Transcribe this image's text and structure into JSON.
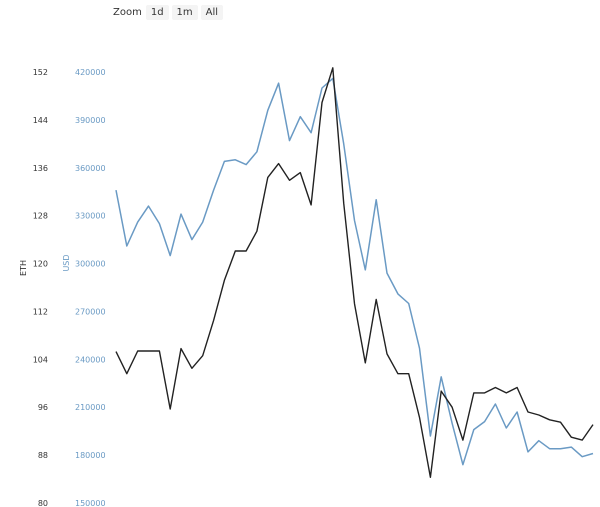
{
  "zoom": {
    "label": "Zoom",
    "buttons": [
      "1d",
      "1m",
      "All"
    ]
  },
  "chart_data": {
    "type": "line",
    "y_axes": [
      {
        "id": "eth",
        "label": "ETH",
        "ticks": [
          "152",
          "144",
          "136",
          "128",
          "120",
          "112",
          "104",
          "96",
          "88",
          "80"
        ],
        "ylim": [
          80,
          152
        ],
        "color": "#222222"
      },
      {
        "id": "usd",
        "label": "USD",
        "ticks": [
          "420000",
          "390000",
          "360000",
          "330000",
          "300000",
          "270000",
          "240000",
          "210000",
          "180000",
          "150000"
        ],
        "ylim": [
          150000,
          420000
        ],
        "color": "#6a9ac4"
      }
    ],
    "series": [
      {
        "axis": "eth",
        "color": "#222222",
        "values": [
          105.3,
          101.6,
          105.4,
          105.4,
          105.4,
          95.7,
          105.8,
          102.5,
          104.6,
          110.5,
          117.2,
          122.1,
          122.1,
          125.4,
          134.4,
          136.7,
          133.9,
          135.2,
          129.8,
          146.9,
          152.7,
          130.1,
          113.3,
          103.4,
          114.0,
          104.9,
          101.6,
          101.6,
          94.3,
          84.3,
          98.7,
          96.0,
          90.5,
          98.4,
          98.4,
          99.3,
          98.4,
          99.3,
          95.2,
          94.7,
          93.9,
          93.5,
          91.0,
          90.5,
          93.1
        ]
      },
      {
        "axis": "usd",
        "color": "#6a9ac4",
        "values": [
          346000,
          311000,
          326000,
          336000,
          325000,
          305000,
          331000,
          315000,
          326000,
          346000,
          364000,
          365000,
          362000,
          370000,
          396000,
          413000,
          377000,
          392000,
          382000,
          410000,
          416000,
          375000,
          327000,
          296000,
          340000,
          294000,
          281000,
          275000,
          247000,
          192000,
          229000,
          200000,
          174000,
          196000,
          201000,
          212000,
          197000,
          207000,
          182000,
          189000,
          184000,
          184000,
          185000,
          179000,
          181000
        ]
      }
    ]
  }
}
